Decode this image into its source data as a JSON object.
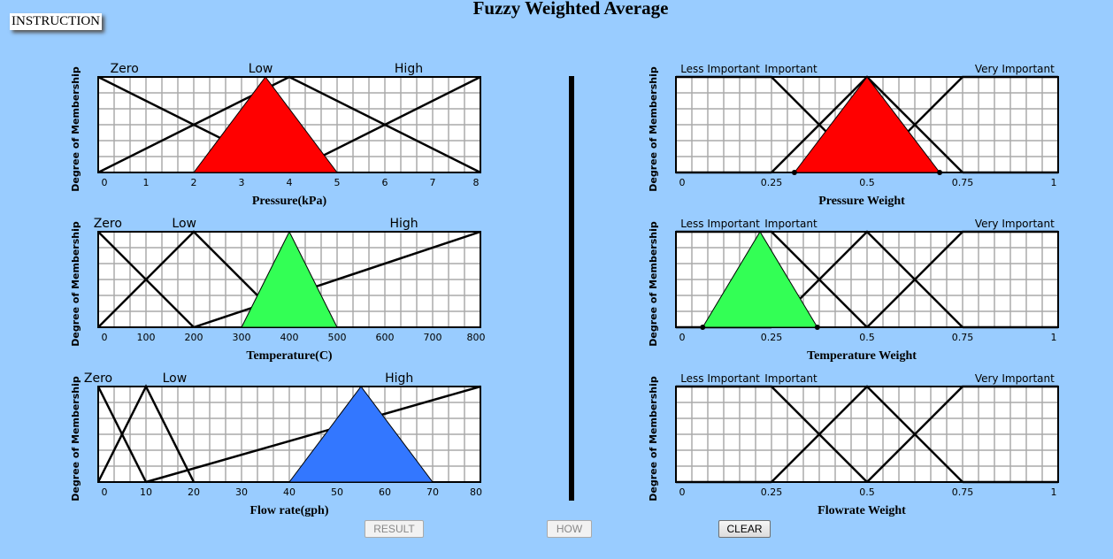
{
  "title": "Fuzzy Weighted Average",
  "instruction_label": "INSTRUCTION",
  "buttons": {
    "result": "RESULT",
    "how": "HOW",
    "clear": "CLEAR"
  },
  "y_axis_label": "Degree of Membership",
  "charts": [
    {
      "id": "pressure",
      "xlabel": "Pressure(kPa)",
      "xmin": 0,
      "xmax": 8,
      "ticks": [
        "0",
        "1",
        "2",
        "3",
        "4",
        "5",
        "6",
        "7",
        "8"
      ],
      "tick_values": [
        0,
        1,
        2,
        3,
        4,
        5,
        6,
        7,
        8
      ],
      "terms": [
        {
          "label": "Zero",
          "at": 0.55
        },
        {
          "label": "Low",
          "at": 3.4
        },
        {
          "label": "High",
          "at": 6.5
        }
      ],
      "sets": [
        [
          [
            0,
            1
          ],
          [
            4,
            0
          ]
        ],
        [
          [
            0,
            0
          ],
          [
            4,
            1
          ],
          [
            8,
            0
          ]
        ],
        [
          [
            4,
            0
          ],
          [
            8,
            1
          ]
        ]
      ],
      "input": {
        "points": [
          [
            2,
            0
          ],
          [
            3.5,
            1
          ],
          [
            5,
            0
          ]
        ],
        "color": "#ff0000",
        "dots": false
      }
    },
    {
      "id": "temperature",
      "xlabel": "Temperature(C)",
      "xmin": 0,
      "xmax": 800,
      "ticks": [
        "0",
        "100",
        "200",
        "300",
        "400",
        "500",
        "600",
        "700",
        "800"
      ],
      "tick_values": [
        0,
        100,
        200,
        300,
        400,
        500,
        600,
        700,
        800
      ],
      "terms": [
        {
          "label": "Zero",
          "at": 20
        },
        {
          "label": "Low",
          "at": 180
        },
        {
          "label": "High",
          "at": 640
        }
      ],
      "sets": [
        [
          [
            0,
            1
          ],
          [
            200,
            0
          ]
        ],
        [
          [
            0,
            0
          ],
          [
            200,
            1
          ],
          [
            400,
            0
          ]
        ],
        [
          [
            200,
            0
          ],
          [
            800,
            1
          ]
        ]
      ],
      "input": {
        "points": [
          [
            300,
            0
          ],
          [
            400,
            1
          ],
          [
            500,
            0
          ]
        ],
        "color": "#33ff55",
        "dots": false
      }
    },
    {
      "id": "flowrate",
      "xlabel": "Flow rate(gph)",
      "xmin": 0,
      "xmax": 80,
      "ticks": [
        "0",
        "10",
        "20",
        "30",
        "40",
        "50",
        "60",
        "70",
        "80"
      ],
      "tick_values": [
        0,
        10,
        20,
        30,
        40,
        50,
        60,
        70,
        80
      ],
      "terms": [
        {
          "label": "Zero",
          "at": 0
        },
        {
          "label": "Low",
          "at": 16
        },
        {
          "label": "High",
          "at": 63
        }
      ],
      "sets": [
        [
          [
            0,
            1
          ],
          [
            10,
            0
          ]
        ],
        [
          [
            0,
            0
          ],
          [
            10,
            1
          ],
          [
            20,
            0
          ]
        ],
        [
          [
            10,
            0
          ],
          [
            80,
            1
          ]
        ]
      ],
      "input": {
        "points": [
          [
            40,
            0
          ],
          [
            55,
            1
          ],
          [
            70,
            0
          ]
        ],
        "color": "#3377ff",
        "dots": false
      }
    },
    {
      "id": "pressure-weight",
      "xlabel": "Pressure Weight",
      "xmin": 0,
      "xmax": 1,
      "ticks": [
        "0",
        "0.25",
        "0.5",
        "0.75",
        "1"
      ],
      "tick_values": [
        0,
        0.25,
        0.5,
        0.75,
        1
      ],
      "terms": [
        {
          "label": "Less Important",
          "at": 0.1
        },
        {
          "label": "Important",
          "at": 0.32
        },
        {
          "label": "Very Important",
          "at": 0.87
        }
      ],
      "sets": [
        [
          [
            0,
            1
          ],
          [
            0.25,
            1
          ],
          [
            0.5,
            0
          ]
        ],
        [
          [
            0.25,
            0
          ],
          [
            0.5,
            1
          ],
          [
            0.75,
            0
          ]
        ],
        [
          [
            0.5,
            0
          ],
          [
            0.75,
            1
          ],
          [
            1,
            1
          ]
        ],
        [
          [
            0,
            0
          ],
          [
            0.25,
            0
          ]
        ],
        [
          [
            0.75,
            0
          ],
          [
            1,
            0
          ]
        ]
      ],
      "input": {
        "points": [
          [
            0.31,
            0
          ],
          [
            0.5,
            1
          ],
          [
            0.69,
            0
          ]
        ],
        "color": "#ff0000",
        "dots": true
      }
    },
    {
      "id": "temperature-weight",
      "xlabel": "Temperature Weight",
      "xmin": 0,
      "xmax": 1,
      "ticks": [
        "0",
        "0.25",
        "0.5",
        "0.75",
        "1"
      ],
      "tick_values": [
        0,
        0.25,
        0.5,
        0.75,
        1
      ],
      "terms": [
        {
          "label": "Less Important",
          "at": 0.1
        },
        {
          "label": "Important",
          "at": 0.32
        },
        {
          "label": "Very Important",
          "at": 0.87
        }
      ],
      "sets": [
        [
          [
            0,
            1
          ],
          [
            0.25,
            1
          ],
          [
            0.5,
            0
          ]
        ],
        [
          [
            0.25,
            0
          ],
          [
            0.5,
            1
          ],
          [
            0.75,
            0
          ]
        ],
        [
          [
            0.5,
            0
          ],
          [
            0.75,
            1
          ],
          [
            1,
            1
          ]
        ],
        [
          [
            0,
            0
          ],
          [
            0.25,
            0
          ]
        ],
        [
          [
            0.75,
            0
          ],
          [
            1,
            0
          ]
        ]
      ],
      "input": {
        "points": [
          [
            0.07,
            0
          ],
          [
            0.22,
            1
          ],
          [
            0.37,
            0
          ]
        ],
        "color": "#33ff55",
        "dots": true
      }
    },
    {
      "id": "flowrate-weight",
      "xlabel": "Flowrate Weight",
      "xmin": 0,
      "xmax": 1,
      "ticks": [
        "0",
        "0.25",
        "0.5",
        "0.75",
        "1"
      ],
      "tick_values": [
        0,
        0.25,
        0.5,
        0.75,
        1
      ],
      "terms": [
        {
          "label": "Less Important",
          "at": 0.1
        },
        {
          "label": "Important",
          "at": 0.32
        },
        {
          "label": "Very Important",
          "at": 0.87
        }
      ],
      "sets": [
        [
          [
            0,
            1
          ],
          [
            0.25,
            1
          ],
          [
            0.5,
            0
          ]
        ],
        [
          [
            0.25,
            0
          ],
          [
            0.5,
            1
          ],
          [
            0.75,
            0
          ]
        ],
        [
          [
            0.5,
            0
          ],
          [
            0.75,
            1
          ],
          [
            1,
            1
          ]
        ],
        [
          [
            0,
            0
          ],
          [
            0.25,
            0
          ]
        ],
        [
          [
            0.75,
            0
          ],
          [
            1,
            0
          ]
        ]
      ],
      "input": null
    }
  ]
}
